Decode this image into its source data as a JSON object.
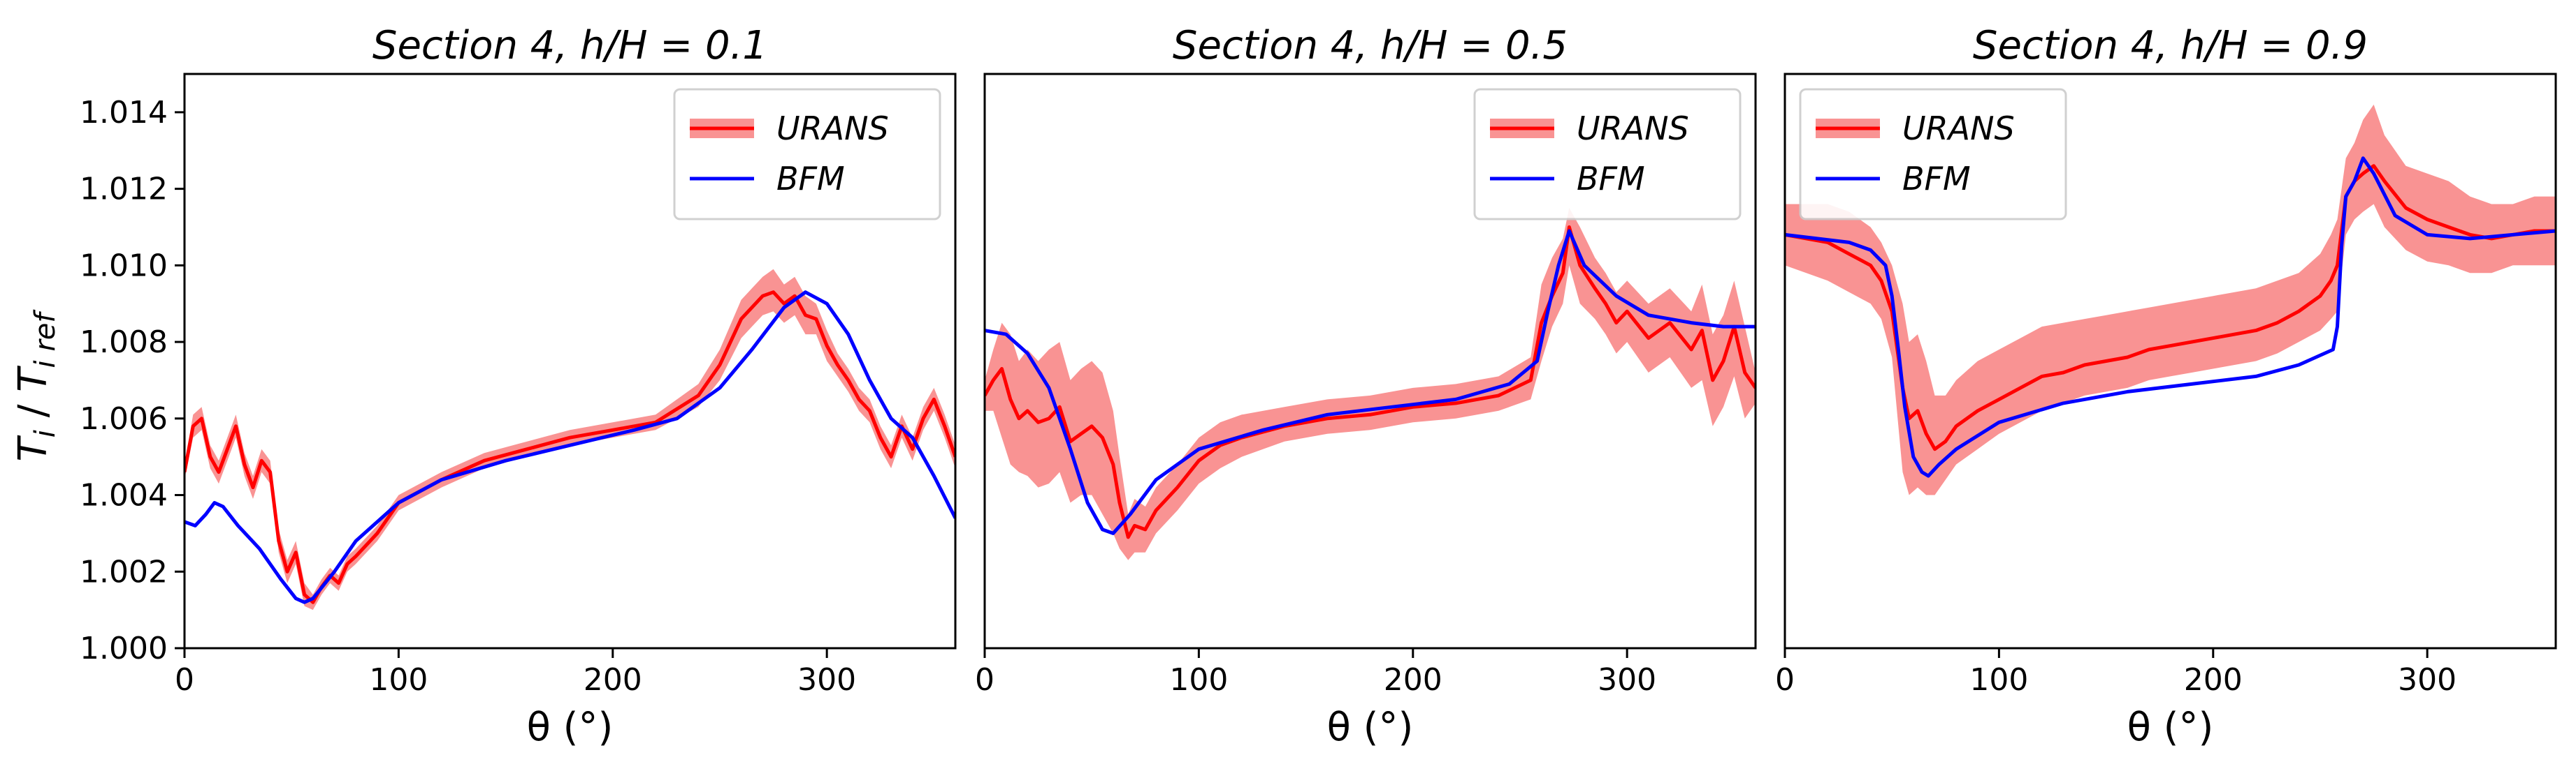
{
  "figure": {
    "ylabel_main": "T",
    "ylabel_main_sub": "i",
    "ylabel_sep": " / ",
    "ylabel_ref": "T",
    "ylabel_ref_sub": "i ref",
    "xlabel": "θ (°)"
  },
  "colors": {
    "urans": "#ff0000",
    "urans_band": "#f88080",
    "bfm": "#0000ff",
    "axis": "#000000"
  },
  "chart_data": [
    {
      "type": "line",
      "title": "Section 4,  h/H = 0.1",
      "xlabel": "θ (°)",
      "ylabel": "T_i / T_i ref",
      "xlim": [
        0,
        360
      ],
      "ylim": [
        1.0,
        1.015
      ],
      "xticks": [
        "0",
        "100",
        "200",
        "300"
      ],
      "yticks": [
        "1.000",
        "1.002",
        "1.004",
        "1.006",
        "1.008",
        "1.010",
        "1.012",
        "1.014"
      ],
      "legend": [
        "URANS",
        "BFM"
      ],
      "legend_position": "top-right",
      "series": [
        {
          "name": "URANS",
          "x": [
            0,
            4,
            8,
            12,
            16,
            20,
            24,
            28,
            32,
            36,
            40,
            44,
            48,
            52,
            56,
            60,
            64,
            68,
            72,
            76,
            80,
            90,
            100,
            120,
            140,
            160,
            180,
            200,
            220,
            240,
            250,
            260,
            265,
            270,
            275,
            280,
            285,
            290,
            295,
            300,
            305,
            310,
            315,
            320,
            325,
            330,
            335,
            340,
            345,
            350,
            355,
            360
          ],
          "values": [
            1.0046,
            1.0058,
            1.006,
            1.005,
            1.0046,
            1.0052,
            1.0058,
            1.0048,
            1.0042,
            1.0049,
            1.0046,
            1.0028,
            1.002,
            1.0025,
            1.0014,
            1.0012,
            1.0016,
            1.0019,
            1.0017,
            1.0022,
            1.0024,
            1.003,
            1.0038,
            1.0044,
            1.0049,
            1.0052,
            1.0055,
            1.0057,
            1.0059,
            1.0066,
            1.0074,
            1.0086,
            1.0089,
            1.0092,
            1.0093,
            1.009,
            1.0092,
            1.0087,
            1.0086,
            1.0079,
            1.0074,
            1.007,
            1.0065,
            1.0062,
            1.0055,
            1.005,
            1.0058,
            1.0052,
            1.006,
            1.0065,
            1.0058,
            1.005
          ],
          "band_lower": [
            1.0044,
            1.0055,
            1.0057,
            1.0047,
            1.0043,
            1.0049,
            1.0055,
            1.0045,
            1.0039,
            1.0046,
            1.0043,
            1.0025,
            1.0017,
            1.0022,
            1.0011,
            1.001,
            1.0014,
            1.0017,
            1.0015,
            1.002,
            1.0022,
            1.0028,
            1.0036,
            1.0042,
            1.0047,
            1.005,
            1.0053,
            1.0055,
            1.0057,
            1.0063,
            1.007,
            1.0081,
            1.0084,
            1.0087,
            1.0088,
            1.0085,
            1.0087,
            1.0082,
            1.0082,
            1.0075,
            1.0071,
            1.0067,
            1.0062,
            1.0059,
            1.0052,
            1.0047,
            1.0055,
            1.0049,
            1.0057,
            1.0062,
            1.0055,
            1.0047
          ],
          "band_upper": [
            1.0048,
            1.0061,
            1.0063,
            1.0053,
            1.0049,
            1.0055,
            1.0061,
            1.0051,
            1.0045,
            1.0052,
            1.0049,
            1.0031,
            1.0023,
            1.0028,
            1.0017,
            1.0014,
            1.0018,
            1.0021,
            1.0019,
            1.0024,
            1.0026,
            1.0032,
            1.004,
            1.0046,
            1.0051,
            1.0054,
            1.0057,
            1.0059,
            1.0061,
            1.0069,
            1.0078,
            1.0091,
            1.0094,
            1.0097,
            1.0099,
            1.0095,
            1.0097,
            1.0092,
            1.009,
            1.0083,
            1.0077,
            1.0073,
            1.0068,
            1.0065,
            1.0058,
            1.0053,
            1.0061,
            1.0055,
            1.0063,
            1.0068,
            1.0061,
            1.0053
          ]
        },
        {
          "name": "BFM",
          "x": [
            0,
            5,
            10,
            14,
            18,
            25,
            35,
            45,
            52,
            56,
            60,
            70,
            80,
            100,
            120,
            150,
            180,
            210,
            230,
            250,
            265,
            280,
            290,
            300,
            310,
            320,
            330,
            340,
            350,
            360
          ],
          "values": [
            1.0033,
            1.0032,
            1.0035,
            1.0038,
            1.0037,
            1.0032,
            1.0026,
            1.0018,
            1.0013,
            1.0012,
            1.0013,
            1.002,
            1.0028,
            1.0038,
            1.0044,
            1.0049,
            1.0053,
            1.0057,
            1.006,
            1.0068,
            1.0078,
            1.0089,
            1.0093,
            1.009,
            1.0082,
            1.007,
            1.006,
            1.0055,
            1.0045,
            1.0034
          ]
        }
      ]
    },
    {
      "type": "line",
      "title": "Section 4,  h/H = 0.5",
      "xlabel": "θ (°)",
      "xlim": [
        0,
        360
      ],
      "ylim": [
        1.0,
        1.015
      ],
      "xticks": [
        "0",
        "100",
        "200",
        "300"
      ],
      "legend": [
        "URANS",
        "BFM"
      ],
      "legend_position": "top-right",
      "series": [
        {
          "name": "URANS",
          "x": [
            0,
            4,
            8,
            12,
            16,
            20,
            25,
            30,
            35,
            40,
            45,
            50,
            55,
            60,
            63,
            67,
            70,
            75,
            80,
            90,
            100,
            110,
            120,
            140,
            160,
            180,
            200,
            220,
            240,
            255,
            260,
            265,
            270,
            273,
            278,
            285,
            290,
            295,
            300,
            310,
            320,
            330,
            335,
            340,
            345,
            350,
            355,
            360
          ],
          "values": [
            1.0066,
            1.007,
            1.0073,
            1.0065,
            1.006,
            1.0062,
            1.0059,
            1.006,
            1.0063,
            1.0054,
            1.0056,
            1.0058,
            1.0055,
            1.0048,
            1.0038,
            1.0029,
            1.0032,
            1.0031,
            1.0036,
            1.0042,
            1.0049,
            1.0053,
            1.0055,
            1.0058,
            1.006,
            1.0061,
            1.0063,
            1.0064,
            1.0066,
            1.007,
            1.0085,
            1.0092,
            1.0098,
            1.011,
            1.01,
            1.0094,
            1.009,
            1.0085,
            1.0088,
            1.0081,
            1.0085,
            1.0078,
            1.0083,
            1.007,
            1.0075,
            1.0084,
            1.0072,
            1.0068
          ],
          "band_lower": [
            1.0062,
            1.0062,
            1.0055,
            1.0048,
            1.0046,
            1.0045,
            1.0042,
            1.0043,
            1.0046,
            1.0038,
            1.004,
            1.004,
            1.0035,
            1.003,
            1.0026,
            1.0023,
            1.0025,
            1.0025,
            1.003,
            1.0036,
            1.0043,
            1.0047,
            1.005,
            1.0054,
            1.0056,
            1.0057,
            1.0059,
            1.006,
            1.0062,
            1.0065,
            1.0075,
            1.0084,
            1.009,
            1.01,
            1.009,
            1.0086,
            1.0082,
            1.0077,
            1.008,
            1.0072,
            1.0076,
            1.0068,
            1.007,
            1.0058,
            1.0063,
            1.0071,
            1.006,
            1.0064
          ],
          "band_upper": [
            1.007,
            1.0078,
            1.0085,
            1.0082,
            1.0075,
            1.0078,
            1.0075,
            1.0078,
            1.008,
            1.007,
            1.0073,
            1.0075,
            1.0072,
            1.0062,
            1.005,
            1.0035,
            1.0039,
            1.0037,
            1.0042,
            1.0048,
            1.0055,
            1.0059,
            1.0061,
            1.0063,
            1.0065,
            1.0066,
            1.0068,
            1.0069,
            1.0071,
            1.0076,
            1.0095,
            1.0102,
            1.0107,
            1.0115,
            1.011,
            1.0102,
            1.0098,
            1.0093,
            1.0096,
            1.009,
            1.0094,
            1.0088,
            1.0095,
            1.0082,
            1.0087,
            1.0096,
            1.0084,
            1.0072
          ]
        },
        {
          "name": "BFM",
          "x": [
            0,
            10,
            20,
            30,
            40,
            48,
            55,
            60,
            68,
            80,
            100,
            130,
            160,
            190,
            220,
            245,
            258,
            263,
            268,
            273,
            280,
            295,
            310,
            330,
            345,
            360
          ],
          "values": [
            1.0083,
            1.0082,
            1.0077,
            1.0068,
            1.0052,
            1.0038,
            1.0031,
            1.003,
            1.0035,
            1.0044,
            1.0052,
            1.0057,
            1.0061,
            1.0063,
            1.0065,
            1.0069,
            1.0075,
            1.0088,
            1.01,
            1.0109,
            1.01,
            1.0092,
            1.0087,
            1.0085,
            1.0084,
            1.0084
          ]
        }
      ]
    },
    {
      "type": "line",
      "title": "Section 4,  h/H = 0.9",
      "xlabel": "θ (°)",
      "xlim": [
        0,
        360
      ],
      "ylim": [
        1.0,
        1.015
      ],
      "xticks": [
        "0",
        "100",
        "200",
        "300"
      ],
      "legend": [
        "URANS",
        "BFM"
      ],
      "legend_position": "top-left",
      "series": [
        {
          "name": "URANS",
          "x": [
            0,
            10,
            20,
            30,
            40,
            45,
            50,
            55,
            58,
            62,
            66,
            70,
            75,
            80,
            90,
            100,
            110,
            120,
            130,
            140,
            150,
            160,
            170,
            180,
            190,
            200,
            210,
            220,
            230,
            240,
            250,
            255,
            258,
            262,
            266,
            270,
            275,
            280,
            290,
            300,
            310,
            320,
            330,
            340,
            350,
            360
          ],
          "values": [
            1.0108,
            1.0107,
            1.0106,
            1.0103,
            1.01,
            1.0096,
            1.0088,
            1.0068,
            1.006,
            1.0062,
            1.0056,
            1.0052,
            1.0054,
            1.0058,
            1.0062,
            1.0065,
            1.0068,
            1.0071,
            1.0072,
            1.0074,
            1.0075,
            1.0076,
            1.0078,
            1.0079,
            1.008,
            1.0081,
            1.0082,
            1.0083,
            1.0085,
            1.0088,
            1.0092,
            1.0096,
            1.01,
            1.0118,
            1.0122,
            1.0124,
            1.0126,
            1.0122,
            1.0115,
            1.0112,
            1.011,
            1.0108,
            1.0107,
            1.0108,
            1.0109,
            1.0109
          ],
          "band_lower": [
            1.01,
            1.0098,
            1.0096,
            1.0093,
            1.009,
            1.0086,
            1.0076,
            1.0046,
            1.004,
            1.0042,
            1.004,
            1.004,
            1.0044,
            1.0048,
            1.0052,
            1.0056,
            1.0059,
            1.0062,
            1.0064,
            1.0066,
            1.0067,
            1.0068,
            1.007,
            1.0071,
            1.0072,
            1.0073,
            1.0074,
            1.0075,
            1.0077,
            1.008,
            1.0083,
            1.0086,
            1.0088,
            1.0108,
            1.0112,
            1.0114,
            1.0116,
            1.011,
            1.0104,
            1.0101,
            1.01,
            1.0098,
            1.0098,
            1.01,
            1.01,
            1.01
          ],
          "band_upper": [
            1.0116,
            1.0116,
            1.0116,
            1.0114,
            1.011,
            1.0106,
            1.01,
            1.009,
            1.008,
            1.0082,
            1.0075,
            1.0066,
            1.0066,
            1.007,
            1.0075,
            1.0078,
            1.0081,
            1.0084,
            1.0085,
            1.0086,
            1.0087,
            1.0088,
            1.0089,
            1.009,
            1.0091,
            1.0092,
            1.0093,
            1.0094,
            1.0096,
            1.0098,
            1.0103,
            1.0108,
            1.0112,
            1.0128,
            1.0132,
            1.0138,
            1.0142,
            1.0134,
            1.0126,
            1.0124,
            1.0122,
            1.0118,
            1.0116,
            1.0116,
            1.0118,
            1.0118
          ]
        },
        {
          "name": "BFM",
          "x": [
            0,
            15,
            30,
            40,
            47,
            50,
            53,
            56,
            60,
            64,
            67,
            72,
            80,
            100,
            130,
            160,
            190,
            220,
            240,
            252,
            256,
            258,
            260,
            262,
            266,
            270,
            275,
            285,
            300,
            320,
            340,
            360
          ],
          "values": [
            1.0108,
            1.0107,
            1.0106,
            1.0104,
            1.01,
            1.0092,
            1.0078,
            1.0063,
            1.005,
            1.0046,
            1.0045,
            1.0048,
            1.0052,
            1.0059,
            1.0064,
            1.0067,
            1.0069,
            1.0071,
            1.0074,
            1.0077,
            1.0078,
            1.0084,
            1.0105,
            1.0118,
            1.0122,
            1.0128,
            1.0124,
            1.0113,
            1.0108,
            1.0107,
            1.0108,
            1.0109
          ]
        }
      ]
    }
  ]
}
